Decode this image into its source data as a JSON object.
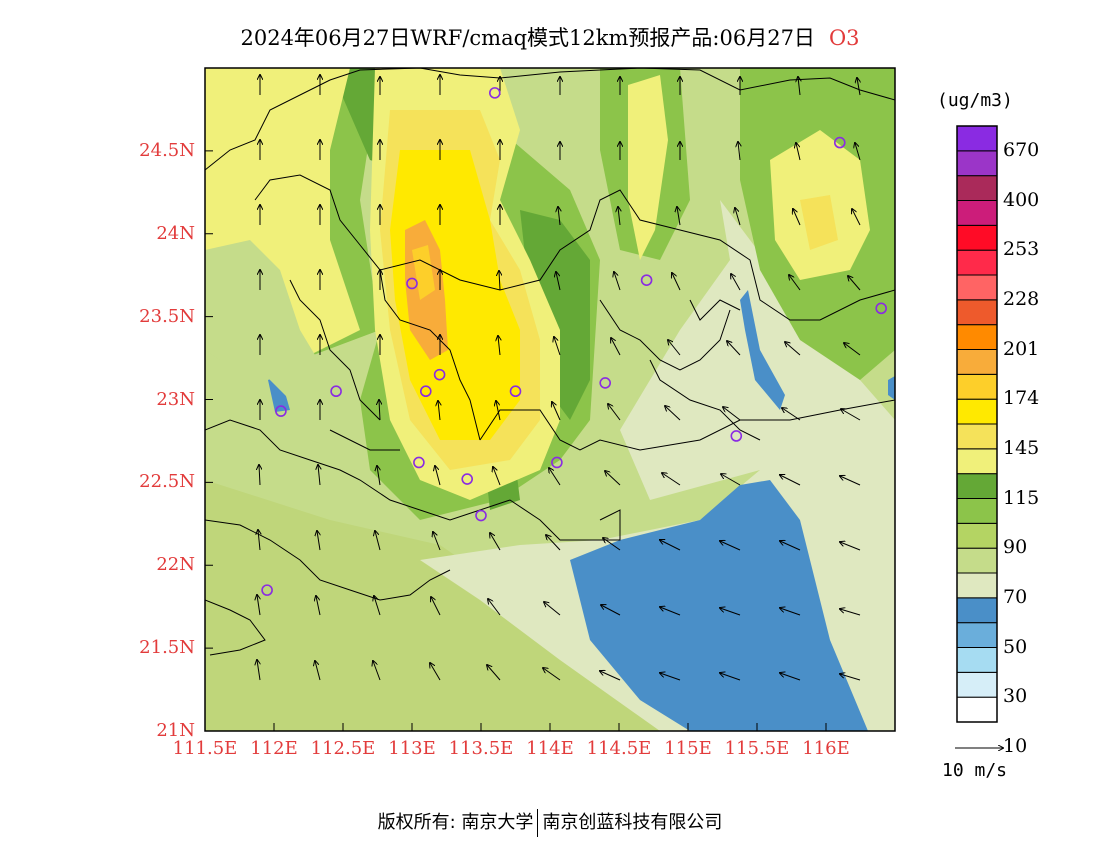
{
  "title": {
    "main": "2024年06月27日WRF/cmaq模式12km预报产品:06月27日",
    "species": "O3"
  },
  "map": {
    "lat_ticks": [
      "24.5N",
      "24N",
      "23.5N",
      "23N",
      "22.5N",
      "22N",
      "21.5N",
      "21N"
    ],
    "lon_ticks": [
      "111.5E",
      "112E",
      "112.5E",
      "113E",
      "113.5E",
      "114E",
      "114.5E",
      "115E",
      "115.5E",
      "116E"
    ],
    "extent": {
      "lon": [
        111.5,
        116.5
      ],
      "lat": [
        21.0,
        25.0
      ]
    },
    "stations": [
      {
        "lon": 113.6,
        "lat": 24.85
      },
      {
        "lon": 116.1,
        "lat": 24.55
      },
      {
        "lon": 113.0,
        "lat": 23.7
      },
      {
        "lon": 114.7,
        "lat": 23.72
      },
      {
        "lon": 116.4,
        "lat": 23.55
      },
      {
        "lon": 113.2,
        "lat": 23.15
      },
      {
        "lon": 113.1,
        "lat": 23.05
      },
      {
        "lon": 113.75,
        "lat": 23.05
      },
      {
        "lon": 112.45,
        "lat": 23.05
      },
      {
        "lon": 114.4,
        "lat": 23.1
      },
      {
        "lon": 112.05,
        "lat": 22.93
      },
      {
        "lon": 115.35,
        "lat": 22.78
      },
      {
        "lon": 113.05,
        "lat": 22.62
      },
      {
        "lon": 113.4,
        "lat": 22.52
      },
      {
        "lon": 114.05,
        "lat": 22.62
      },
      {
        "lon": 113.5,
        "lat": 22.3
      },
      {
        "lon": 111.95,
        "lat": 21.85
      }
    ],
    "colors": {
      "station": "#8a2be2",
      "label": "#e23b3b"
    }
  },
  "legend": {
    "unit": "(ug/m3)",
    "labels": [
      "670",
      "400",
      "253",
      "228",
      "201",
      "174",
      "145",
      "115",
      "90",
      "70",
      "50",
      "30",
      "10"
    ],
    "colors": [
      "#ffffff",
      "#d6eef8",
      "#a6dcf2",
      "#6aaedb",
      "#4a8fc8",
      "#dfe8c0",
      "#c5dc8a",
      "#b4d463",
      "#8cc44a",
      "#64a836",
      "#f0f07a",
      "#f5e25a",
      "#ffe900",
      "#fdcf2a",
      "#f8ac3a",
      "#ff8a00",
      "#ee5a2c",
      "#ff6464",
      "#ff2a4a",
      "#ff0b26",
      "#cc1d7a",
      "#aa2a5a",
      "#9b35c8",
      "#8a2be2"
    ]
  },
  "wind_scale": {
    "label": "10 m/s"
  },
  "footer": {
    "left": "版权所有: 南京大学",
    "right": "南京创蓝科技有限公司"
  }
}
